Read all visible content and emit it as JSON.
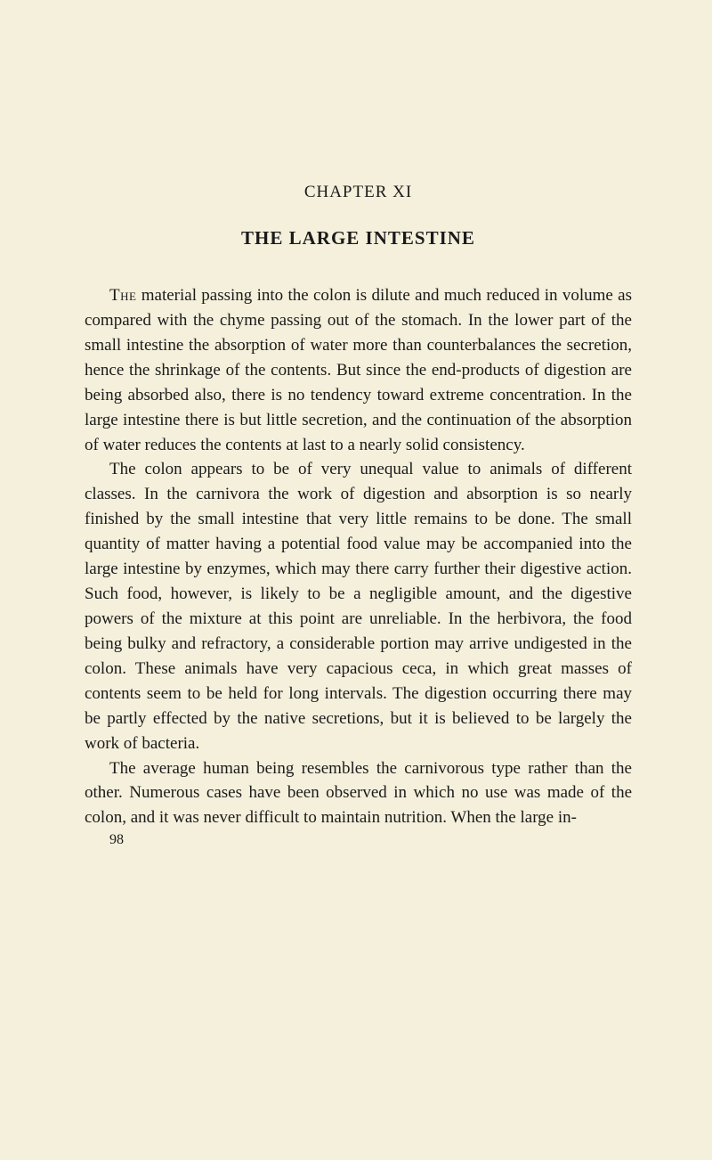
{
  "chapter": {
    "number": "CHAPTER XI",
    "title": "THE LARGE INTESTINE"
  },
  "paragraphs": {
    "p1_lead": "The",
    "p1_rest": " material passing into the colon is dilute and much reduced in volume as compared with the chyme passing out of the stomach. In the lower part of the small intestine the absorption of water more than counterbalances the secretion, hence the shrinkage of the contents. But since the end-products of digestion are being absorbed also, there is no tendency toward extreme concentration. In the large intestine there is but little secretion, and the continuation of the absorption of water reduces the contents at last to a nearly solid consistency.",
    "p2": "The colon appears to be of very unequal value to animals of different classes. In the carnivora the work of digestion and absorption is so nearly finished by the small intestine that very little remains to be done. The small quantity of matter having a potential food value may be accompanied into the large intestine by enzymes, which may there carry further their digestive action. Such food, however, is likely to be a negligible amount, and the digestive powers of the mixture at this point are unreliable. In the herbivora, the food being bulky and refractory, a considerable portion may arrive undigested in the colon. These animals have very capacious ceca, in which great masses of contents seem to be held for long intervals. The digestion occurring there may be partly effected by the native secretions, but it is believed to be largely the work of bacteria.",
    "p3": "The average human being resembles the carnivorous type rather than the other. Numerous cases have been observed in which no use was made of the colon, and it was never difficult to maintain nutrition. When the large in-"
  },
  "pageNumber": "98",
  "styles": {
    "background_color": "#f5f0dc",
    "text_color": "#1a1a1a",
    "body_fontsize": 19,
    "title_fontsize": 21,
    "chapter_number_fontsize": 19,
    "page_number_fontsize": 16,
    "line_height": 1.47,
    "text_indent": 28,
    "font_family": "Georgia, Times New Roman, serif"
  }
}
